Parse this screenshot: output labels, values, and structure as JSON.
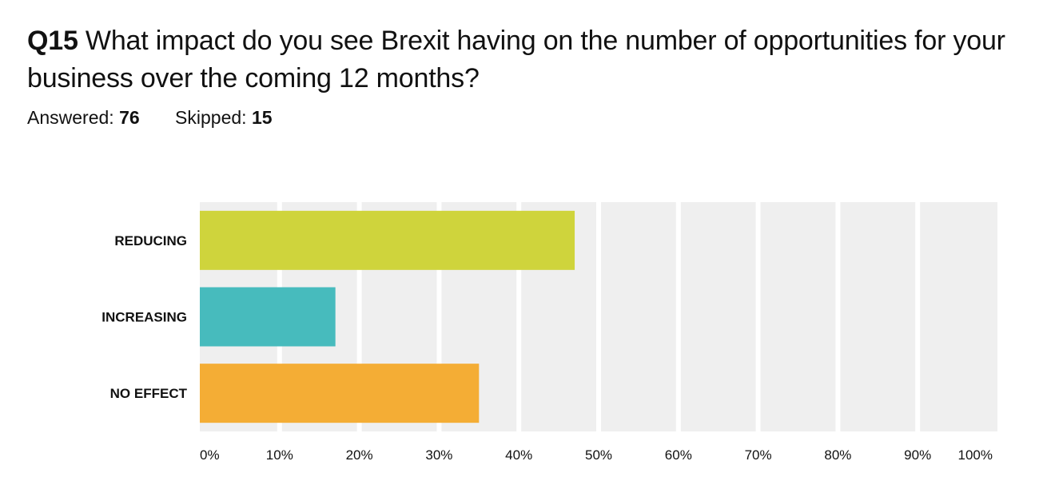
{
  "question": {
    "number": "Q15",
    "text": "What impact do you see Brexit having on the number of opportunities for your business over the coming 12 months?"
  },
  "stats": {
    "answered_label": "Answered:",
    "answered_value": "76",
    "skipped_label": "Skipped:",
    "skipped_value": "15"
  },
  "colors": {
    "plot_background": "#efefef",
    "gridline": "#ffffff"
  },
  "chart_data": {
    "type": "bar",
    "orientation": "horizontal",
    "categories": [
      "REDUCING",
      "INCREASING",
      "NO EFFECT"
    ],
    "values": [
      47,
      17,
      35
    ],
    "value_unit": "%",
    "colors": [
      "#cfd43c",
      "#47bbbd",
      "#f4ad35"
    ],
    "xlim": [
      0,
      100
    ],
    "x_ticks": [
      "0%",
      "10%",
      "20%",
      "30%",
      "40%",
      "50%",
      "60%",
      "70%",
      "80%",
      "90%",
      "100%"
    ],
    "grid": true,
    "title": "",
    "xlabel": "",
    "ylabel": ""
  }
}
